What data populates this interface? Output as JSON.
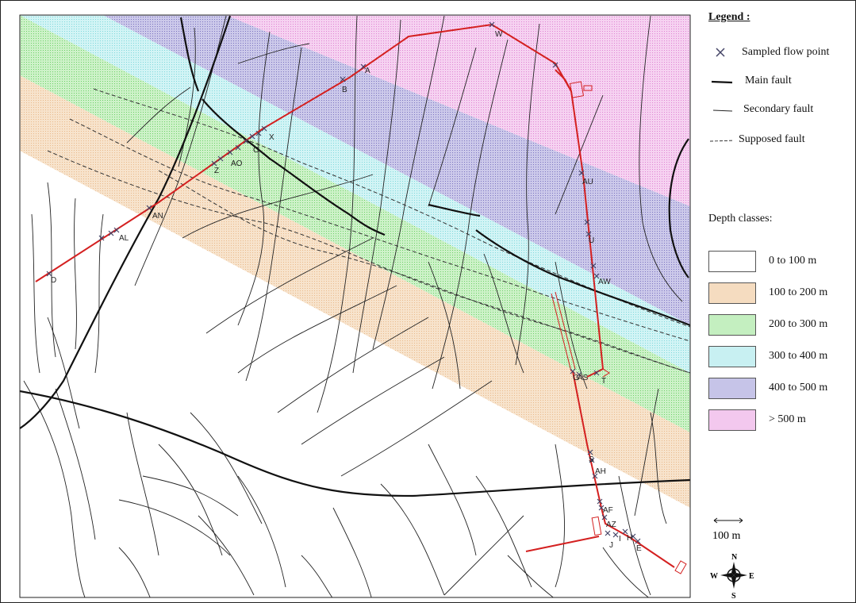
{
  "legend": {
    "title": "Legend :",
    "items": [
      {
        "label": "Sampled flow point",
        "icon": "cross-icon"
      },
      {
        "label": "Main fault",
        "icon": "main-fault-line"
      },
      {
        "label": "Secondary fault",
        "icon": "secondary-fault-line"
      },
      {
        "label": "Supposed fault",
        "icon": "supposed-fault-line"
      }
    ],
    "depth_title": "Depth classes:",
    "depth_classes": [
      {
        "label": "0 to 100 m",
        "color": "#ffffff"
      },
      {
        "label": "100 to 200 m",
        "color": "#f5dcc0"
      },
      {
        "label": "200 to 300 m",
        "color": "#c4efc0"
      },
      {
        "label": "300 to 400 m",
        "color": "#c8f0f2"
      },
      {
        "label": "400 to 500 m",
        "color": "#c6c4e8"
      },
      {
        "label": "> 500 m",
        "color": "#f3c8ee"
      }
    ]
  },
  "scale": {
    "label": "100 m"
  },
  "compass": {
    "n": "N",
    "s": "S",
    "e": "E",
    "w": "W"
  },
  "colors": {
    "tunnel": "#d42020",
    "fault": "#111111",
    "sample": "#555577"
  },
  "sample_labels": [
    "W",
    "A",
    "B",
    "X",
    "C",
    "AO",
    "Z",
    "AN",
    "AL",
    "D",
    "AU",
    "U",
    "AW",
    "AS",
    "T",
    "G",
    "S",
    "AH",
    "AF",
    "AZ",
    "J",
    "I",
    "H",
    "E"
  ]
}
